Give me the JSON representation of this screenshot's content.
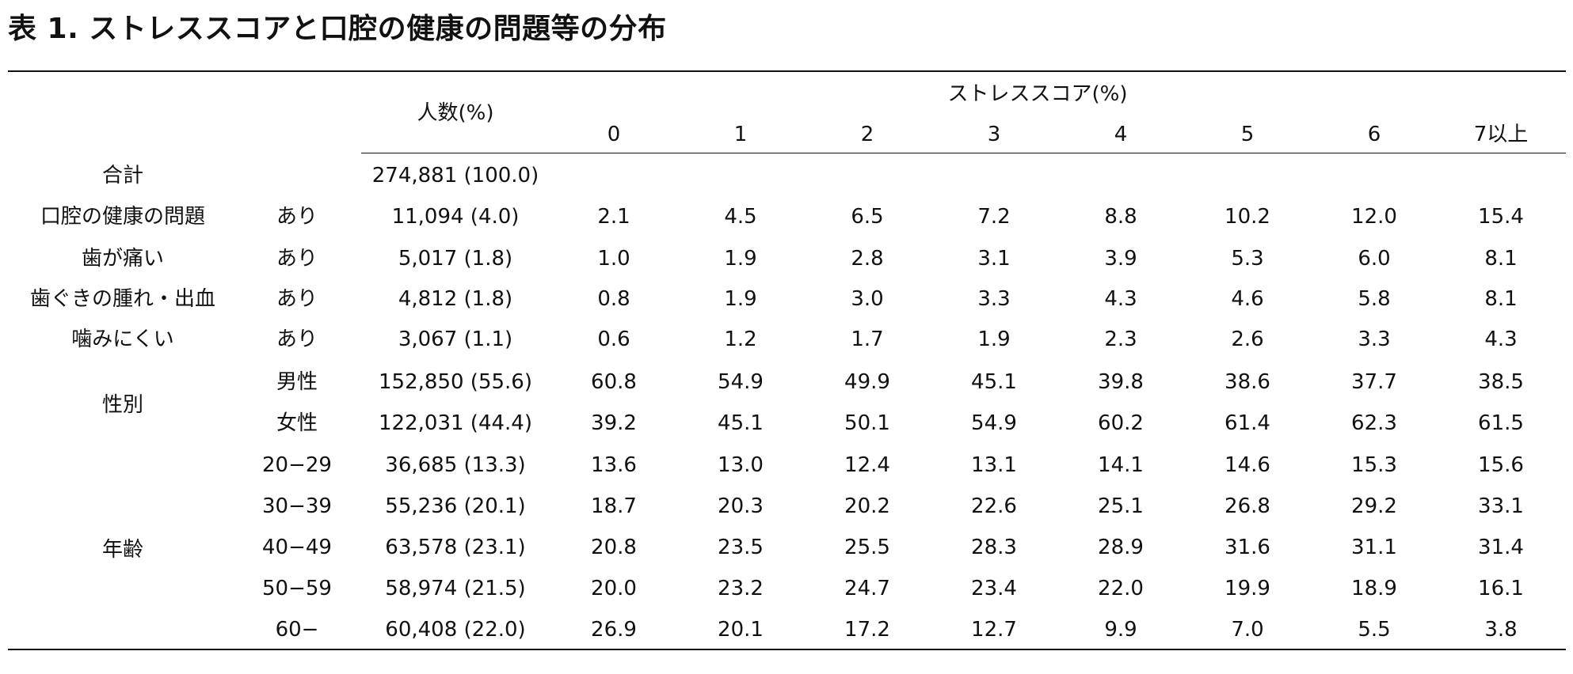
{
  "title": "表 1.  ストレススコアと口腔の健康の問題等の分布",
  "headers": {
    "count": "人数(%)",
    "stress_group": "ストレススコア(%)",
    "scores": [
      "0",
      "1",
      "2",
      "3",
      "4",
      "5",
      "6",
      "7以上"
    ]
  },
  "total": {
    "label": "合計",
    "count": "274,881 (100.0)"
  },
  "rows": [
    {
      "label": "口腔の健康の問題",
      "sub": "あり",
      "count": "11,094 (4.0)",
      "values": [
        "2.1",
        "4.5",
        "6.5",
        "7.2",
        "8.8",
        "10.2",
        "12.0",
        "15.4"
      ]
    },
    {
      "label": "歯が痛い",
      "sub": "あり",
      "count": "5,017 (1.8)",
      "values": [
        "1.0",
        "1.9",
        "2.8",
        "3.1",
        "3.9",
        "5.3",
        "6.0",
        "8.1"
      ]
    },
    {
      "label": "歯ぐきの腫れ・出血",
      "sub": "あり",
      "count": "4,812 (1.8)",
      "values": [
        "0.8",
        "1.9",
        "3.0",
        "3.3",
        "4.3",
        "4.6",
        "5.8",
        "8.1"
      ]
    },
    {
      "label": "噛みにくい",
      "sub": "あり",
      "count": "3,067 (1.1)",
      "values": [
        "0.6",
        "1.2",
        "1.7",
        "1.9",
        "2.3",
        "2.6",
        "3.3",
        "4.3"
      ]
    },
    {
      "label": "",
      "sub": "男性",
      "count": "152,850 (55.6)",
      "values": [
        "60.8",
        "54.9",
        "49.9",
        "45.1",
        "39.8",
        "38.6",
        "37.7",
        "38.5"
      ]
    },
    {
      "label": "",
      "sub": "女性",
      "count": "122,031 (44.4)",
      "values": [
        "39.2",
        "45.1",
        "50.1",
        "54.9",
        "60.2",
        "61.4",
        "62.3",
        "61.5"
      ]
    },
    {
      "label": "",
      "sub": "20−29",
      "count": "36,685 (13.3)",
      "values": [
        "13.6",
        "13.0",
        "12.4",
        "13.1",
        "14.1",
        "14.6",
        "15.3",
        "15.6"
      ]
    },
    {
      "label": "",
      "sub": "30−39",
      "count": "55,236 (20.1)",
      "values": [
        "18.7",
        "20.3",
        "20.2",
        "22.6",
        "25.1",
        "26.8",
        "29.2",
        "33.1"
      ]
    },
    {
      "label": "",
      "sub": "40−49",
      "count": "63,578 (23.1)",
      "values": [
        "20.8",
        "23.5",
        "25.5",
        "28.3",
        "28.9",
        "31.6",
        "31.1",
        "31.4"
      ]
    },
    {
      "label": "",
      "sub": "50−59",
      "count": "58,974 (21.5)",
      "values": [
        "20.0",
        "23.2",
        "24.7",
        "23.4",
        "22.0",
        "19.9",
        "18.9",
        "16.1"
      ]
    },
    {
      "label": "",
      "sub": "60−",
      "count": "60,408 (22.0)",
      "values": [
        "26.9",
        "20.1",
        "17.2",
        "12.7",
        "9.9",
        "7.0",
        "5.5",
        "3.8"
      ]
    }
  ],
  "groups": [
    {
      "label": "性別"
    },
    {
      "label": "年齢"
    }
  ]
}
